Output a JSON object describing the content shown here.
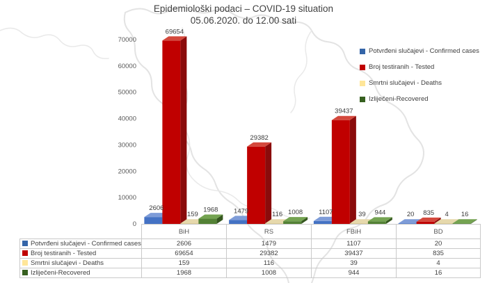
{
  "title": {
    "line1": "Epidemiološki podaci – COVID-19 situation",
    "line2": "05.06.2020. do 12.00 sati"
  },
  "colors": {
    "title_text": "#404040",
    "axis_text": "#595959",
    "label_text": "#3B3B3B",
    "table_border": "#C9C9C9",
    "map_outline": "#E3E3E3",
    "background": "#FFFFFF"
  },
  "chart_data": {
    "type": "bar",
    "style": "3d-clustered-column",
    "title": "Epidemiološki podaci – COVID-19 situation",
    "subtitle": "05.06.2020. do 12.00 sati",
    "xlabel": "",
    "ylabel": "",
    "categories": [
      "BiH",
      "RS",
      "FBiH",
      "BD"
    ],
    "series": [
      {
        "name": "Potvrđeni slučajevi - Confirmed cases",
        "values": [
          2606,
          1479,
          1107,
          20
        ],
        "color": "#4472C4",
        "color_top": "#7E9CD8",
        "color_side": "#2A4E8F",
        "key_color": "#3465A8"
      },
      {
        "name": "Broj testiranih - Tested",
        "values": [
          69654,
          29382,
          39437,
          835
        ],
        "color": "#C00000",
        "color_top": "#D4483C",
        "color_side": "#8A0B0B",
        "key_color": "#C00000"
      },
      {
        "name": "Smrtni slučajevi - Deaths",
        "values": [
          159,
          116,
          39,
          4
        ],
        "color": "#D3C084",
        "color_top": "#E6D9AC",
        "color_side": "#A89759",
        "key_color": "#FFE699"
      },
      {
        "name": "Izliječeni-Recovered",
        "values": [
          1968,
          1008,
          944,
          16
        ],
        "color": "#538135",
        "color_top": "#74A351",
        "color_side": "#35571F",
        "key_color": "#376020"
      }
    ],
    "ylim": [
      0,
      70000
    ],
    "yticks": [
      0,
      10000,
      20000,
      30000,
      40000,
      50000,
      60000,
      70000
    ],
    "grid": false,
    "legend_position": "right",
    "data_labels": true,
    "data_table_shown": true
  }
}
